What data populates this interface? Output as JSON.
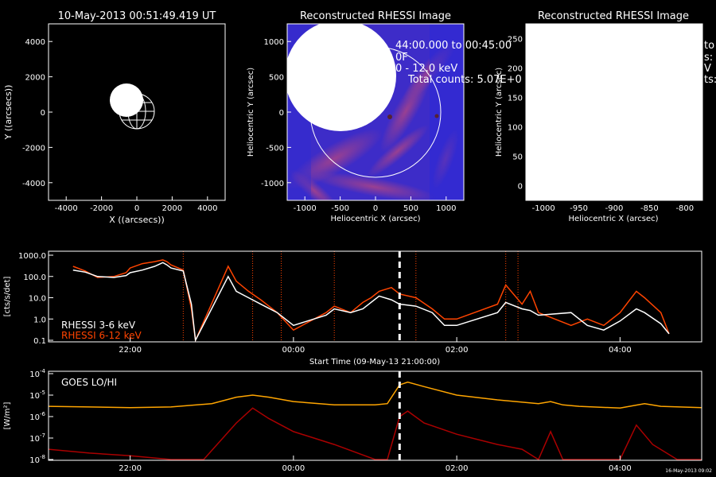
{
  "panel_sun": {
    "title": "10-May-2013 00:51:49.419 UT",
    "xlabel": "X ((arcsecs))",
    "ylabel": "Y ((arcsecs))",
    "xticks": [
      "-4000",
      "-2000",
      "0",
      "2000",
      "4000"
    ],
    "yticks": [
      "4000",
      "2000",
      "0",
      "-2000",
      "-4000"
    ]
  },
  "panel_rhessi1": {
    "title": "Reconstructed RHESSI Image",
    "xlabel": "Heliocentric X (arcsec)",
    "ylabel": "Heliocentric Y (arcsec)",
    "xticks": [
      "-1000",
      "-500",
      "0",
      "500",
      "1000"
    ],
    "yticks": [
      "1000",
      "500",
      "0",
      "-500",
      "-1000"
    ],
    "overlay": [
      "44:00.000 to 00:45:00",
      "0F",
      "0 - 12.0 keV",
      "Total counts: 5.07E+0"
    ]
  },
  "panel_rhessi2": {
    "title": "Reconstructed RHESSI Image",
    "xlabel": "Heliocentric X (arcsec)",
    "ylabel": "Heliocentric Y (arcsec)",
    "xticks": [
      "-1000",
      "-950",
      "-900",
      "-850",
      "-800"
    ],
    "yticks": [
      "250",
      "200",
      "150",
      "100",
      "50",
      "0"
    ],
    "edge_text": [
      "to",
      "s:",
      "V",
      "ts:"
    ]
  },
  "chart_data": [
    {
      "type": "line",
      "ylabel": "[cts/s/det]",
      "xlabel": "Start Time (09-May-13 21:00:00)",
      "scale": "log",
      "ylim": [
        0.1,
        1000
      ],
      "yticks": [
        "1000.0",
        "100.0",
        "10.0",
        "1.0",
        "0.1"
      ],
      "xlim_hours": [
        21.0,
        29.0
      ],
      "xticks": [
        "22:00",
        "00:00",
        "02:00",
        "04:00"
      ],
      "series": [
        {
          "name": "RHESSI  3-6 keV",
          "color": "#ffffff",
          "x": [
            21.3,
            21.45,
            21.6,
            21.8,
            21.95,
            22.0,
            22.15,
            22.3,
            22.4,
            22.45,
            22.5,
            22.65,
            22.75,
            22.8,
            23.2,
            23.3,
            23.45,
            23.6,
            23.8,
            24.0,
            24.4,
            24.5,
            24.7,
            24.85,
            24.95,
            25.05,
            25.2,
            25.3,
            25.5,
            25.7,
            25.85,
            26.0,
            26.5,
            26.6,
            26.8,
            26.9,
            27.0,
            27.4,
            27.6,
            27.8,
            28.0,
            28.2,
            28.3,
            28.5,
            28.6
          ],
          "y": [
            200,
            160,
            100,
            90,
            110,
            150,
            200,
            300,
            450,
            350,
            250,
            180,
            5,
            0.1,
            100,
            20,
            10,
            5,
            2,
            0.5,
            1.5,
            3,
            2,
            3,
            6,
            12,
            8,
            5,
            4,
            2,
            0.5,
            0.5,
            2,
            6,
            3,
            2.5,
            1.5,
            2,
            0.5,
            0.3,
            0.8,
            3,
            2,
            0.6,
            0.2
          ]
        },
        {
          "name": "RHESSI  6-12 keV",
          "color": "#ff4400",
          "x": [
            21.3,
            21.45,
            21.6,
            21.8,
            21.95,
            22.0,
            22.15,
            22.3,
            22.4,
            22.45,
            22.5,
            22.65,
            22.75,
            22.8,
            23.2,
            23.3,
            23.45,
            23.6,
            23.8,
            24.0,
            24.4,
            24.5,
            24.7,
            24.85,
            24.95,
            25.05,
            25.2,
            25.3,
            25.5,
            25.7,
            25.85,
            26.0,
            26.5,
            26.6,
            26.8,
            26.9,
            27.0,
            27.4,
            27.6,
            27.8,
            28.0,
            28.2,
            28.3,
            28.5,
            28.6
          ],
          "y": [
            300,
            180,
            90,
            100,
            150,
            250,
            400,
            500,
            600,
            500,
            350,
            200,
            3,
            0.1,
            300,
            60,
            20,
            8,
            2,
            0.3,
            2,
            4,
            2,
            6,
            10,
            20,
            30,
            15,
            10,
            3,
            1,
            1,
            5,
            40,
            5,
            20,
            2,
            0.5,
            1,
            0.5,
            2,
            20,
            10,
            2,
            0.2
          ]
        }
      ],
      "marker_hour": 25.3
    },
    {
      "type": "line",
      "ylabel": "[W/m²]",
      "legend": "GOES LO/HI",
      "scale": "log",
      "yticks_exp": [
        "-4",
        "-5",
        "-6",
        "-7",
        "-8"
      ],
      "xlim_hours": [
        21.0,
        29.0
      ],
      "xticks": [
        "22:00",
        "00:00",
        "02:00",
        "04:00"
      ],
      "series": [
        {
          "name": "GOES LO",
          "color": "#ffa500",
          "x": [
            21.0,
            21.5,
            22.0,
            22.5,
            23.0,
            23.3,
            23.5,
            23.7,
            24.0,
            24.5,
            25.0,
            25.15,
            25.3,
            25.4,
            25.6,
            26.0,
            26.5,
            27.0,
            27.15,
            27.3,
            27.5,
            28.0,
            28.3,
            28.5,
            29.0
          ],
          "y": [
            3e-06,
            2.8e-06,
            2.6e-06,
            2.8e-06,
            4e-06,
            8e-06,
            1e-05,
            8e-06,
            5e-06,
            3.5e-06,
            3.5e-06,
            4e-06,
            3e-05,
            4e-05,
            2.5e-05,
            1e-05,
            6e-06,
            4e-06,
            5e-06,
            3.5e-06,
            3e-06,
            2.5e-06,
            4e-06,
            3e-06,
            2.6e-06
          ]
        },
        {
          "name": "GOES HI",
          "color": "#aa0000",
          "x": [
            21.0,
            21.5,
            22.0,
            22.5,
            22.9,
            23.3,
            23.5,
            23.7,
            24.0,
            24.5,
            25.0,
            25.15,
            25.3,
            25.4,
            25.6,
            26.0,
            26.5,
            26.8,
            27.0,
            27.15,
            27.3,
            27.5,
            28.0,
            28.2,
            28.4,
            28.7,
            29.0
          ],
          "y": [
            3e-08,
            2e-08,
            1.5e-08,
            1e-08,
            1e-08,
            5e-07,
            2.5e-06,
            8e-07,
            2e-07,
            5e-08,
            1e-08,
            1e-08,
            1e-06,
            1.8e-06,
            5e-07,
            1.5e-07,
            5e-08,
            3e-08,
            1e-08,
            2e-07,
            1e-08,
            1e-08,
            1e-08,
            4e-07,
            5e-08,
            1e-08,
            1e-08
          ]
        }
      ],
      "marker_hour": 25.3,
      "stamp": "16-May-2013 09:02"
    }
  ]
}
